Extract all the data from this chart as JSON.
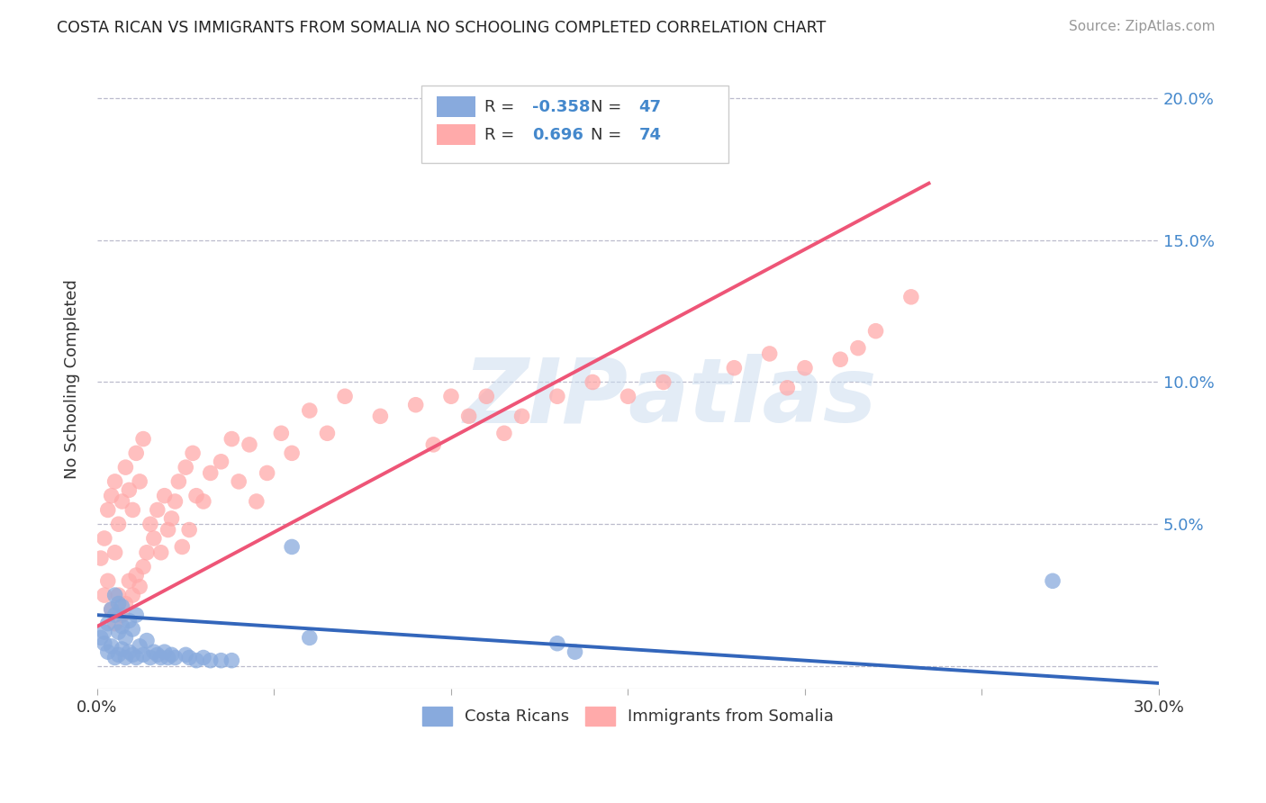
{
  "title": "COSTA RICAN VS IMMIGRANTS FROM SOMALIA NO SCHOOLING COMPLETED CORRELATION CHART",
  "source": "Source: ZipAtlas.com",
  "ylabel": "No Schooling Completed",
  "xmin": 0.0,
  "xmax": 0.3,
  "ymin": -0.008,
  "ymax": 0.21,
  "yticks": [
    0.0,
    0.05,
    0.1,
    0.15,
    0.2
  ],
  "right_ytick_labels": [
    "",
    "5.0%",
    "10.0%",
    "15.0%",
    "20.0%"
  ],
  "xticks": [
    0.0,
    0.05,
    0.1,
    0.15,
    0.2,
    0.25,
    0.3
  ],
  "xtick_labels": [
    "0.0%",
    "",
    "",
    "",
    "",
    "",
    "30.0%"
  ],
  "blue_R": -0.358,
  "blue_N": 47,
  "pink_R": 0.696,
  "pink_N": 74,
  "blue_color": "#88AADD",
  "pink_color": "#FFAAAA",
  "blue_line_color": "#3366BB",
  "pink_line_color": "#EE5577",
  "watermark": "ZIPatlas",
  "legend_label_blue": "Costa Ricans",
  "legend_label_pink": "Immigrants from Somalia",
  "blue_line_x0": 0.0,
  "blue_line_y0": 0.018,
  "blue_line_x1": 0.3,
  "blue_line_y1": -0.006,
  "pink_line_x0": 0.0,
  "pink_line_y0": 0.014,
  "pink_line_x1": 0.235,
  "pink_line_y1": 0.17,
  "blue_scatter_x": [
    0.001,
    0.002,
    0.002,
    0.003,
    0.003,
    0.004,
    0.004,
    0.005,
    0.005,
    0.005,
    0.006,
    0.006,
    0.006,
    0.007,
    0.007,
    0.007,
    0.008,
    0.008,
    0.009,
    0.009,
    0.01,
    0.01,
    0.011,
    0.011,
    0.012,
    0.013,
    0.014,
    0.015,
    0.016,
    0.017,
    0.018,
    0.019,
    0.02,
    0.021,
    0.022,
    0.025,
    0.026,
    0.028,
    0.03,
    0.032,
    0.035,
    0.038,
    0.055,
    0.06,
    0.13,
    0.135,
    0.27
  ],
  "blue_scatter_y": [
    0.01,
    0.008,
    0.012,
    0.005,
    0.015,
    0.007,
    0.02,
    0.003,
    0.018,
    0.025,
    0.004,
    0.012,
    0.022,
    0.006,
    0.014,
    0.021,
    0.003,
    0.01,
    0.005,
    0.016,
    0.004,
    0.013,
    0.003,
    0.018,
    0.007,
    0.004,
    0.009,
    0.003,
    0.005,
    0.004,
    0.003,
    0.005,
    0.003,
    0.004,
    0.003,
    0.004,
    0.003,
    0.002,
    0.003,
    0.002,
    0.002,
    0.002,
    0.042,
    0.01,
    0.008,
    0.005,
    0.03
  ],
  "pink_scatter_x": [
    0.001,
    0.002,
    0.002,
    0.003,
    0.003,
    0.004,
    0.004,
    0.005,
    0.005,
    0.005,
    0.006,
    0.006,
    0.007,
    0.007,
    0.008,
    0.008,
    0.009,
    0.009,
    0.01,
    0.01,
    0.011,
    0.011,
    0.012,
    0.012,
    0.013,
    0.013,
    0.014,
    0.015,
    0.016,
    0.017,
    0.018,
    0.019,
    0.02,
    0.021,
    0.022,
    0.023,
    0.024,
    0.025,
    0.026,
    0.027,
    0.028,
    0.03,
    0.032,
    0.035,
    0.038,
    0.04,
    0.043,
    0.045,
    0.048,
    0.052,
    0.055,
    0.06,
    0.065,
    0.07,
    0.08,
    0.09,
    0.095,
    0.1,
    0.105,
    0.11,
    0.115,
    0.12,
    0.13,
    0.14,
    0.15,
    0.16,
    0.18,
    0.19,
    0.195,
    0.2,
    0.21,
    0.215,
    0.22,
    0.23
  ],
  "pink_scatter_y": [
    0.038,
    0.025,
    0.045,
    0.03,
    0.055,
    0.02,
    0.06,
    0.015,
    0.04,
    0.065,
    0.025,
    0.05,
    0.018,
    0.058,
    0.022,
    0.07,
    0.03,
    0.062,
    0.025,
    0.055,
    0.032,
    0.075,
    0.028,
    0.065,
    0.035,
    0.08,
    0.04,
    0.05,
    0.045,
    0.055,
    0.04,
    0.06,
    0.048,
    0.052,
    0.058,
    0.065,
    0.042,
    0.07,
    0.048,
    0.075,
    0.06,
    0.058,
    0.068,
    0.072,
    0.08,
    0.065,
    0.078,
    0.058,
    0.068,
    0.082,
    0.075,
    0.09,
    0.082,
    0.095,
    0.088,
    0.092,
    0.078,
    0.095,
    0.088,
    0.095,
    0.082,
    0.088,
    0.095,
    0.1,
    0.095,
    0.1,
    0.105,
    0.11,
    0.098,
    0.105,
    0.108,
    0.112,
    0.118,
    0.13
  ]
}
